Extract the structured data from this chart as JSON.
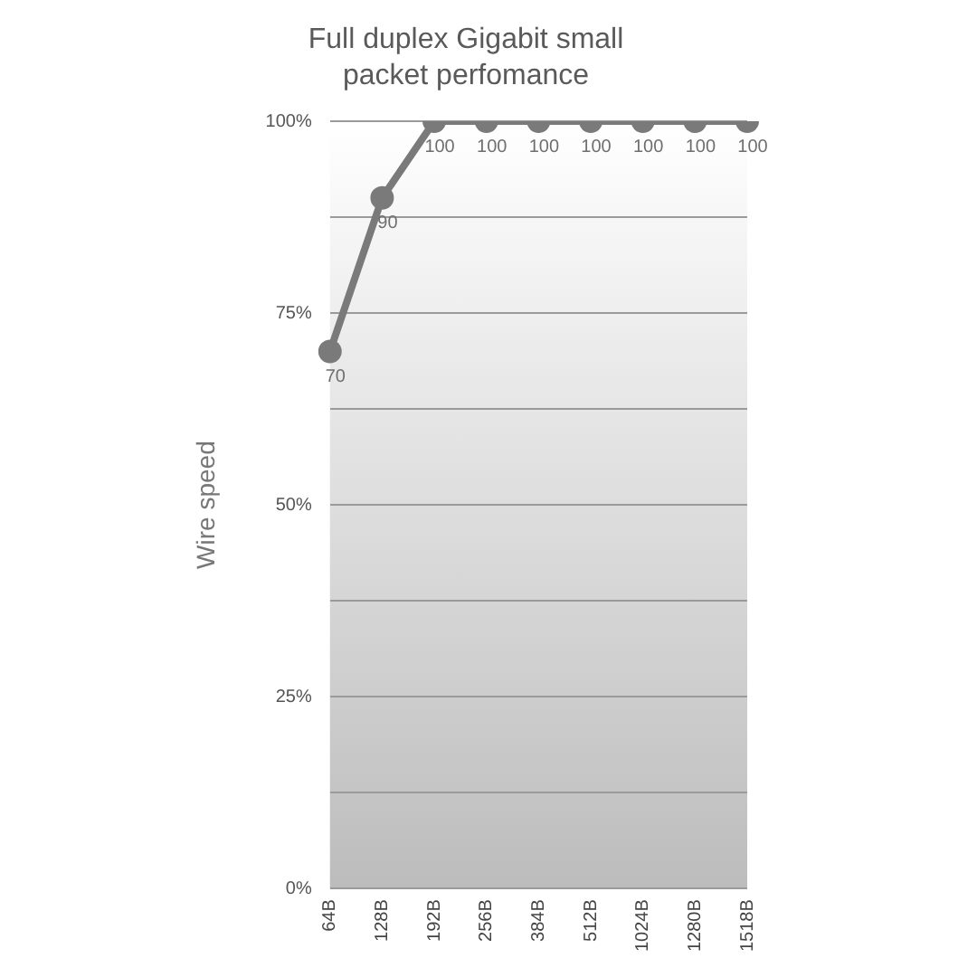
{
  "chart_data": {
    "type": "line",
    "title": "Full duplex Gigabit small packet perfomance",
    "ylabel": "Wire speed",
    "categories": [
      "64B",
      "128B",
      "192B",
      "256B",
      "384B",
      "512B",
      "1024B",
      "1280B",
      "1518B"
    ],
    "series": [
      {
        "color": "#7a7a7a",
        "values": [
          70,
          90,
          100,
          100,
          100,
          100,
          100,
          100,
          100
        ]
      }
    ],
    "ylim": [
      0,
      100
    ],
    "yticks": [
      {
        "value": 0,
        "label": "0%"
      },
      {
        "value": 12.5,
        "label": null
      },
      {
        "value": 25,
        "label": "25%"
      },
      {
        "value": 37.5,
        "label": null
      },
      {
        "value": 50,
        "label": "50%"
      },
      {
        "value": 62.5,
        "label": null
      },
      {
        "value": 75,
        "label": "75%"
      },
      {
        "value": 87.5,
        "label": null
      },
      {
        "value": 100,
        "label": "100%"
      }
    ],
    "grid": "y",
    "marker": "circle",
    "line_style": "solid",
    "data_labels": true
  }
}
